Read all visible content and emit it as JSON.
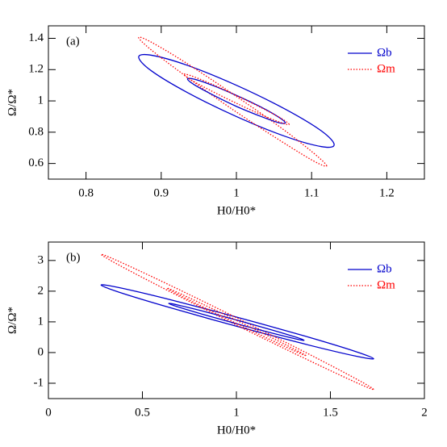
{
  "chart_data": [
    {
      "type": "line",
      "label": "(a)",
      "x_label": "H0/H0*",
      "y_label": "Ω/Ω*",
      "xlim": [
        0.75,
        1.25
      ],
      "ylim": [
        0.5,
        1.48
      ],
      "xticks": [
        0.8,
        0.9,
        1,
        1.1,
        1.2
      ],
      "yticks": [
        0.6,
        0.8,
        1,
        1.2,
        1.4
      ],
      "legend": "upper right",
      "series": [
        {
          "name": "Ωb",
          "color": "#0000cc",
          "linestyle": "solid",
          "x": [
            1.13,
            1.113,
            1.065,
            1.0,
            0.935,
            0.887,
            0.87,
            0.887,
            0.935,
            1.0,
            1.065,
            1.113
          ],
          "values": [
            0.72,
            0.808,
            0.947,
            1.1,
            1.227,
            1.292,
            1.28,
            1.192,
            1.053,
            0.9,
            0.773,
            0.708
          ]
        },
        {
          "name": "Ωm",
          "color": "#ff0000",
          "linestyle": "dotted",
          "x": [
            1.12,
            1.103,
            1.058,
            0.995,
            0.933,
            0.887,
            0.87,
            0.887,
            0.933,
            0.995,
            1.058,
            1.103
          ],
          "values": [
            0.585,
            0.665,
            0.833,
            1.045,
            1.243,
            1.375,
            1.405,
            1.325,
            1.157,
            0.945,
            0.747,
            0.615
          ]
        },
        {
          "color": "#0000cc",
          "linestyle": "solid",
          "x": [
            1.065,
            1.056,
            1.033,
            1,
            0.968,
            0.944,
            0.935,
            0.944,
            0.968,
            1,
            1.033,
            1.056
          ],
          "values": [
            0.86,
            0.897,
            0.96,
            1.035,
            1.1,
            1.139,
            1.14,
            1.103,
            1.04,
            0.965,
            0.9,
            0.861
          ]
        },
        {
          "color": "#ff0000",
          "linestyle": "dotted",
          "x": [
            1.07,
            1.061,
            1.035,
            1,
            0.965,
            0.939,
            0.93,
            0.939,
            0.965,
            1,
            1.035,
            1.061
          ],
          "values": [
            0.85,
            0.884,
            0.952,
            1.035,
            1.112,
            1.162,
            1.17,
            1.136,
            1.068,
            0.985,
            0.908,
            0.858
          ]
        }
      ]
    },
    {
      "type": "line",
      "label": "(b)",
      "x_label": "H0/H0*",
      "y_label": "Ω/Ω*",
      "xlim": [
        0,
        2
      ],
      "ylim": [
        -1.5,
        3.6
      ],
      "xticks": [
        0,
        0.5,
        1,
        1.5,
        2
      ],
      "yticks": [
        -1,
        0,
        1,
        2,
        3
      ],
      "legend": "upper right",
      "series": [
        {
          "name": "Ωb",
          "color": "#0000cc",
          "linestyle": "solid",
          "x": [
            1.73,
            1.633,
            1.368,
            1.005,
            0.643,
            0.377,
            0.28,
            0.377,
            0.643,
            1.005,
            1.368,
            1.633
          ],
          "values": [
            -0.2,
            0.036,
            0.53,
            1.15,
            1.73,
            2.114,
            2.2,
            1.964,
            1.47,
            0.85,
            0.27,
            -0.114
          ]
        },
        {
          "name": "Ωm",
          "color": "#ff0000",
          "linestyle": "dotted",
          "x": [
            1.73,
            1.633,
            1.368,
            1.005,
            0.643,
            0.377,
            0.28,
            0.377,
            0.643,
            1.005,
            1.368,
            1.633
          ],
          "values": [
            -1.2,
            -0.845,
            0.004,
            1.12,
            2.204,
            2.965,
            3.2,
            2.845,
            1.996,
            0.88,
            -0.204,
            -0.965
          ]
        },
        {
          "color": "#0000cc",
          "linestyle": "solid",
          "x": [
            1.36,
            1.312,
            1.18,
            1,
            0.82,
            0.688,
            0.64,
            0.688,
            0.82,
            1,
            1.18,
            1.312
          ],
          "values": [
            0.4,
            0.51,
            0.752,
            1.06,
            1.352,
            1.55,
            1.6,
            1.49,
            1.248,
            0.94,
            0.648,
            0.45
          ]
        },
        {
          "color": "#ff0000",
          "linestyle": "dotted",
          "x": [
            1.37,
            1.32,
            1.185,
            1,
            0.815,
            0.68,
            0.63,
            0.68,
            0.815,
            1,
            1.185,
            1.32
          ],
          "values": [
            -0.1,
            0.072,
            0.493,
            1.05,
            1.593,
            1.978,
            2.1,
            1.928,
            1.507,
            0.95,
            0.407,
            0.022
          ]
        }
      ]
    }
  ]
}
